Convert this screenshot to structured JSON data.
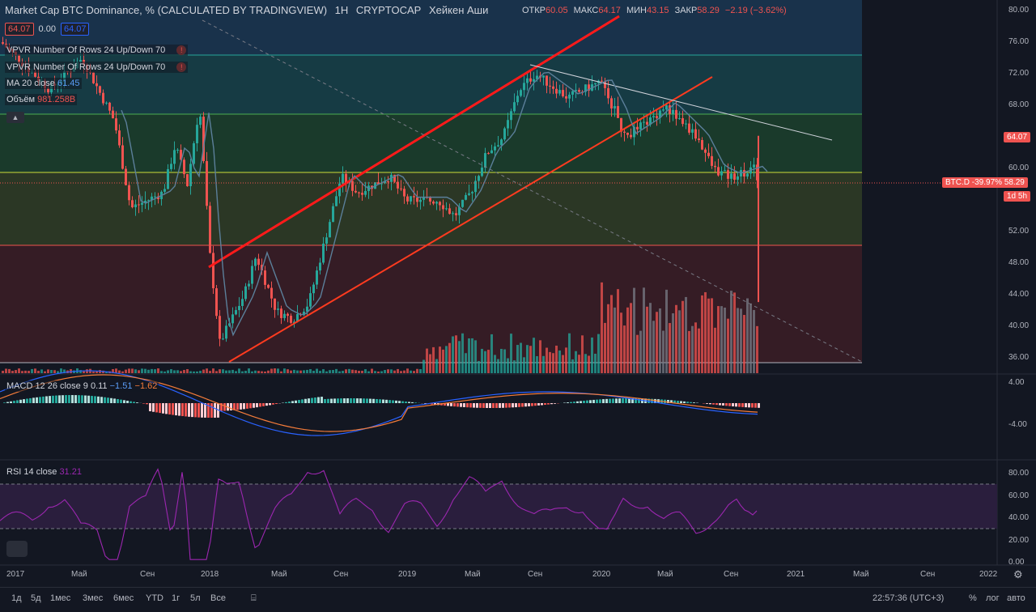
{
  "header": {
    "symbol": "Market Cap BTC Dominance, % (CALCULATED BY TRADINGVIEW)",
    "interval": "1H",
    "exchange": "CRYPTOCAP",
    "chart_type": "Хейкен Аши",
    "ohlc": {
      "open_label": "ОТКР",
      "open": "60.05",
      "high_label": "МАКС",
      "high": "64.17",
      "low_label": "МИН",
      "low": "43.15",
      "close_label": "ЗАКР",
      "close": "58.29",
      "change": "−2.19 (−3.62%)"
    }
  },
  "price_boxes": {
    "sell": "64.07",
    "spread": "0.00",
    "buy": "64.07"
  },
  "indicators": [
    {
      "name": "VPVR Number Of Rows 24 Up/Down 70",
      "warn": "!"
    },
    {
      "name": "VPVR Number Of Rows 24 Up/Down 70",
      "warn": "!"
    },
    {
      "name": "MA 20 close",
      "value": "61.45"
    },
    {
      "name": "Объём",
      "value": "981.258B"
    }
  ],
  "macd": {
    "label": "MACD 12 26 close 9",
    "v1": "0.11",
    "v2": "−1.51",
    "v3": "−1.62"
  },
  "rsi": {
    "label": "RSI 14 close",
    "value": "31.21"
  },
  "price_axis": [
    "80.00",
    "76.00",
    "72.00",
    "68.00",
    "64.00",
    "60.00",
    "56.00",
    "52.00",
    "48.00",
    "44.00",
    "40.00",
    "36.00"
  ],
  "macd_axis": [
    "4.00",
    "-4.00"
  ],
  "rsi_axis": [
    "80.00",
    "60.00",
    "40.00",
    "20.00",
    "0.00"
  ],
  "last_price_tag": "64.07",
  "btcd_tag": "BTC.D -39.97%",
  "btcd_value": "58.29",
  "countdown_tag": "1d 5h",
  "time_axis": [
    "2017",
    "Май",
    "Сен",
    "2018",
    "Май",
    "Сен",
    "2019",
    "Май",
    "Сен",
    "2020",
    "Май",
    "Сен",
    "2021",
    "Май",
    "Сен",
    "2022"
  ],
  "ranges": [
    "1д",
    "5д",
    "1мес",
    "3мес",
    "6мес",
    "YTD",
    "1г",
    "5л",
    "Все"
  ],
  "clock": "22:57:36 (UTC+3)",
  "scale_opts": [
    "%",
    "лог",
    "авто"
  ],
  "colors": {
    "up": "#26a69a",
    "down": "#ef5350",
    "channel": "#ff1a1a",
    "bg": "#131722"
  }
}
